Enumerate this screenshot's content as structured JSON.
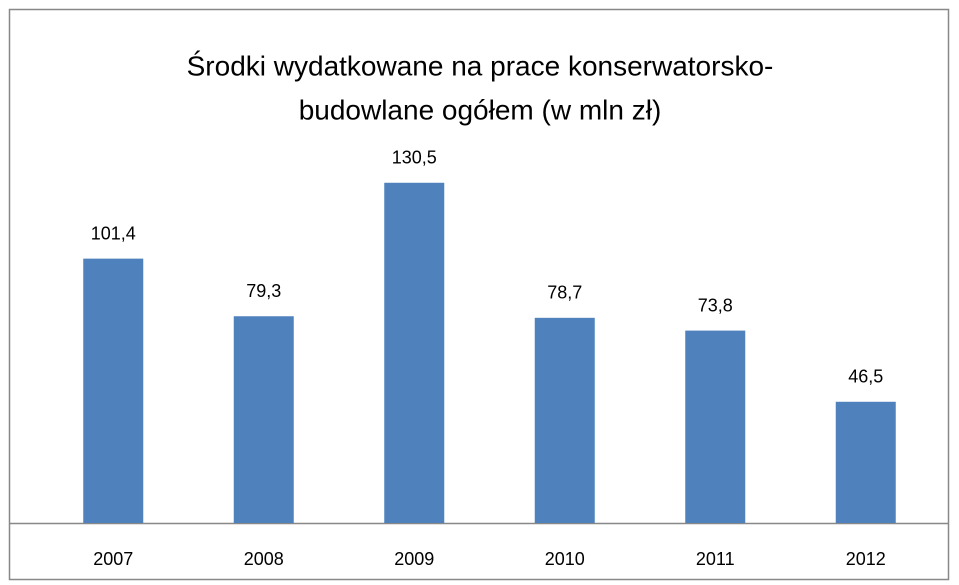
{
  "chart_data": {
    "type": "bar",
    "title": [
      "Środki wydatkowane na prace konserwatorsko-",
      "budowlane ogółem (w mln zł)"
    ],
    "categories": [
      "2007",
      "2008",
      "2009",
      "2010",
      "2011",
      "2012"
    ],
    "values": [
      101.4,
      79.3,
      130.5,
      78.7,
      73.8,
      46.5
    ],
    "value_labels": [
      "101,4",
      "79,3",
      "130,5",
      "78,7",
      "73,8",
      "46,5"
    ],
    "color": "#4f81bd",
    "ylim": [
      0,
      140
    ]
  }
}
